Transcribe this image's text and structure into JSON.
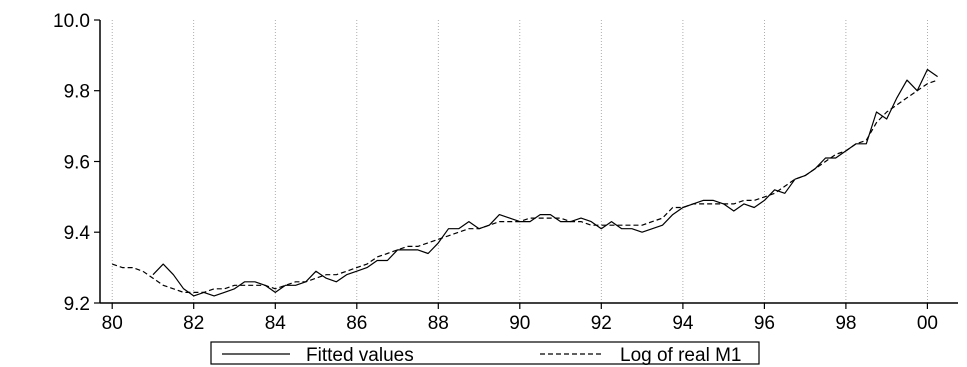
{
  "chart_data": {
    "type": "line",
    "title": "",
    "xlabel": "",
    "ylabel": "",
    "x_start": 1980.0,
    "x_step": 0.25,
    "xlim": [
      1979.7,
      2000.75
    ],
    "ylim": [
      9.2,
      10.0
    ],
    "x_ticks": [
      1980,
      1982,
      1984,
      1986,
      1988,
      1990,
      1992,
      1994,
      1996,
      1998,
      2000
    ],
    "x_tick_labels": [
      "80",
      "82",
      "84",
      "86",
      "88",
      "90",
      "92",
      "94",
      "96",
      "98",
      "00"
    ],
    "y_ticks": [
      9.2,
      9.4,
      9.6,
      9.8,
      10.0
    ],
    "y_tick_labels": [
      "9.2",
      "9.4",
      "9.6",
      "9.8",
      "10.0"
    ],
    "grid": {
      "vertical": true,
      "horizontal": false
    },
    "legend_position": "bottom",
    "series": [
      {
        "name": "Fitted values",
        "style": "solid",
        "values": [
          null,
          null,
          null,
          null,
          9.28,
          9.31,
          9.28,
          9.24,
          9.22,
          9.23,
          9.22,
          9.23,
          9.24,
          9.26,
          9.26,
          9.25,
          9.23,
          9.25,
          9.25,
          9.26,
          9.29,
          9.27,
          9.26,
          9.28,
          9.29,
          9.3,
          9.32,
          9.32,
          9.35,
          9.35,
          9.35,
          9.34,
          9.37,
          9.41,
          9.41,
          9.43,
          9.41,
          9.42,
          9.45,
          9.44,
          9.43,
          9.43,
          9.45,
          9.45,
          9.43,
          9.43,
          9.44,
          9.43,
          9.41,
          9.43,
          9.41,
          9.41,
          9.4,
          9.41,
          9.42,
          9.45,
          9.47,
          9.48,
          9.49,
          9.49,
          9.48,
          9.46,
          9.48,
          9.47,
          9.49,
          9.52,
          9.51,
          9.55,
          9.56,
          9.58,
          9.61,
          9.61,
          9.63,
          9.65,
          9.65,
          9.74,
          9.72,
          9.78,
          9.83,
          9.8,
          9.86,
          9.84
        ]
      },
      {
        "name": "Log of real M1",
        "style": "dashed",
        "values": [
          9.31,
          9.3,
          9.3,
          9.29,
          9.27,
          9.25,
          9.24,
          9.23,
          9.23,
          9.23,
          9.24,
          9.24,
          9.25,
          9.25,
          9.25,
          9.25,
          9.24,
          9.25,
          9.26,
          9.26,
          9.27,
          9.28,
          9.28,
          9.29,
          9.3,
          9.31,
          9.33,
          9.34,
          9.35,
          9.36,
          9.36,
          9.37,
          9.38,
          9.39,
          9.4,
          9.41,
          9.41,
          9.42,
          9.43,
          9.43,
          9.43,
          9.44,
          9.44,
          9.44,
          9.44,
          9.43,
          9.43,
          9.42,
          9.42,
          9.42,
          9.42,
          9.42,
          9.42,
          9.43,
          9.44,
          9.47,
          9.47,
          9.48,
          9.48,
          9.48,
          9.48,
          9.48,
          9.49,
          9.49,
          9.5,
          9.51,
          9.53,
          9.55,
          9.56,
          9.58,
          9.6,
          9.62,
          9.63,
          9.65,
          9.66,
          9.71,
          9.74,
          9.76,
          9.78,
          9.8,
          9.82,
          9.83
        ]
      }
    ]
  }
}
